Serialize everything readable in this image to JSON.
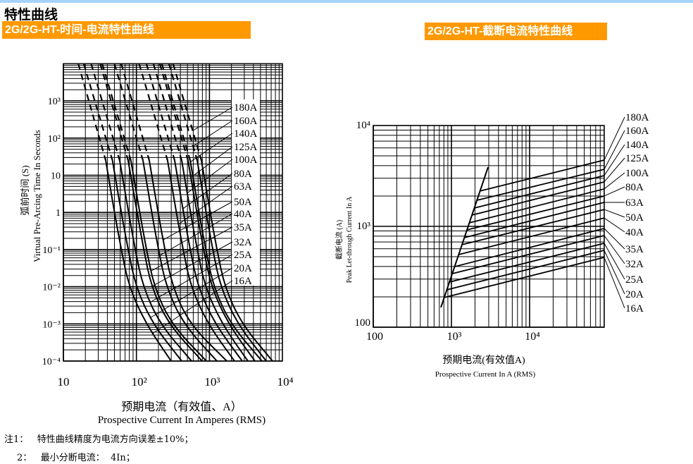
{
  "header": {
    "title": "特性曲线",
    "left_banner": "2G/2G-HT-时间-电流特性曲线",
    "right_banner": "2G/2G-HT-截断电流特性曲线",
    "accent_color": "#ff9900",
    "top_bar_color": "#a6d3f7"
  },
  "notes": [
    {
      "prefix": "注1：",
      "text": "特性曲线精度为电流方向误差±10%；"
    },
    {
      "prefix": "2：",
      "text": "最小分断电流：  4In；"
    }
  ],
  "chart_data": [
    {
      "type": "line",
      "title": "2G/2G-HT-时间-电流特性曲线",
      "xlabel": "预期电流（有效值、A）",
      "xlabel_en": "Prospective Current In Amperes (RMS)",
      "ylabel": "弧前时间 (S)",
      "ylabel_en": "Virtual Pre-Arcing Time In Seconds",
      "x_scale": "log",
      "y_scale": "log",
      "xlim": [
        10,
        10000
      ],
      "ylim": [
        0.0001,
        10000
      ],
      "x_ticks": [
        "10",
        "10²",
        "10³",
        "10⁴"
      ],
      "y_ticks": [
        "10⁻⁴",
        "10⁻³",
        "10⁻²",
        "10⁻¹",
        "1",
        "10",
        "10²",
        "10³"
      ],
      "grid": true,
      "time_points": [
        10000,
        25,
        1,
        0.1,
        0.01,
        0.001,
        0.0001
      ],
      "dashed_above_time": 25,
      "series": [
        {
          "name": "16A",
          "current": [
            16,
            38,
            50,
            62,
            79,
            135,
            299
          ]
        },
        {
          "name": "20A",
          "current": [
            19,
            47,
            62,
            77,
            98,
            167,
            417
          ]
        },
        {
          "name": "25A",
          "current": [
            24,
            59,
            78,
            96,
            123,
            209,
            569
          ]
        },
        {
          "name": "32A",
          "current": [
            32,
            77,
            102,
            126,
            160,
            273,
            794
          ]
        },
        {
          "name": "35A",
          "current": [
            34,
            84,
            111,
            137,
            175,
            298,
            908
          ]
        },
        {
          "name": "40A",
          "current": [
            50,
            123,
            162,
            200,
            256,
            437,
            1265
          ]
        },
        {
          "name": "50A",
          "current": [
            62,
            150,
            198,
            245,
            312,
            533,
            1726
          ]
        },
        {
          "name": "63A",
          "current": [
            109,
            267,
            352,
            435,
            555,
            948,
            2203
          ]
        },
        {
          "name": "80A",
          "current": [
            137,
            334,
            441,
            544,
            695,
            1186,
            2812
          ]
        },
        {
          "name": "100A",
          "current": [
            171,
            417,
            550,
            680,
            867,
            1480,
            3362
          ]
        },
        {
          "name": "125A",
          "current": [
            209,
            509,
            672,
            830,
            1059,
            1807,
            4197
          ]
        },
        {
          "name": "140A",
          "current": [
            223,
            545,
            719,
            888,
            1134,
            1935,
            5237
          ]
        },
        {
          "name": "160A",
          "current": [
            279,
            680,
            898,
            1108,
            1414,
            2414,
            5986
          ]
        },
        {
          "name": "180A",
          "current": [
            318,
            776,
            1024,
            1265,
            1614,
            2755,
            7315
          ]
        }
      ]
    },
    {
      "type": "line",
      "title": "2G/2G-HT-截断电流特性曲线",
      "xlabel": "预期电流(有效值A)",
      "xlabel_en": "Prospective Current In A (RMS)",
      "ylabel": "截断电流 (A)",
      "ylabel_en": "Peak Let-through Current In A",
      "x_scale": "log",
      "y_scale": "log",
      "xlim": [
        100,
        90000
      ],
      "ylim": [
        100,
        10000
      ],
      "x_ticks": [
        "100",
        "10³",
        "10⁴"
      ],
      "y_ticks": [
        "100",
        "10³",
        "10⁴"
      ],
      "grid": true,
      "envelope": [
        [
          733,
          157
        ],
        [
          2940,
          3860
        ]
      ],
      "series": [
        {
          "name": "180A",
          "points": [
            [
              2320,
              2240
            ],
            [
              90000,
              4540
            ]
          ]
        },
        {
          "name": "160A",
          "points": [
            [
              2120,
              1815
            ],
            [
              90000,
              3680
            ]
          ]
        },
        {
          "name": "140A",
          "points": [
            [
              1960,
              1520
            ],
            [
              90000,
              3190
            ]
          ]
        },
        {
          "name": "125A",
          "points": [
            [
              1830,
              1294
            ],
            [
              90000,
              2760
            ]
          ]
        },
        {
          "name": "100A",
          "points": [
            [
              1690,
              1084
            ],
            [
              90000,
              2350
            ]
          ]
        },
        {
          "name": "80A",
          "points": [
            [
              1580,
              923
            ],
            [
              90000,
              2000
            ]
          ]
        },
        {
          "name": "63A",
          "points": [
            [
              1460,
              773
            ],
            [
              90000,
              1730
            ]
          ]
        },
        {
          "name": "50A",
          "points": [
            [
              1360,
              658
            ],
            [
              90000,
              1470
            ]
          ]
        },
        {
          "name": "40A",
          "points": [
            [
              1240,
              525
            ],
            [
              90000,
              1210
            ]
          ]
        },
        {
          "name": "35A",
          "points": [
            [
              1100,
              399
            ],
            [
              90000,
              953
            ]
          ]
        },
        {
          "name": "32A",
          "points": [
            [
              1030,
              340
            ],
            [
              90000,
              811
            ]
          ]
        },
        {
          "name": "25A",
          "points": [
            [
              942,
              280
            ],
            [
              90000,
              679
            ]
          ]
        },
        {
          "name": "20A",
          "points": [
            [
              873,
              235
            ],
            [
              90000,
              578
            ]
          ]
        },
        {
          "name": "16A",
          "points": [
            [
              808,
              197
            ],
            [
              90000,
              492
            ]
          ]
        }
      ]
    }
  ]
}
